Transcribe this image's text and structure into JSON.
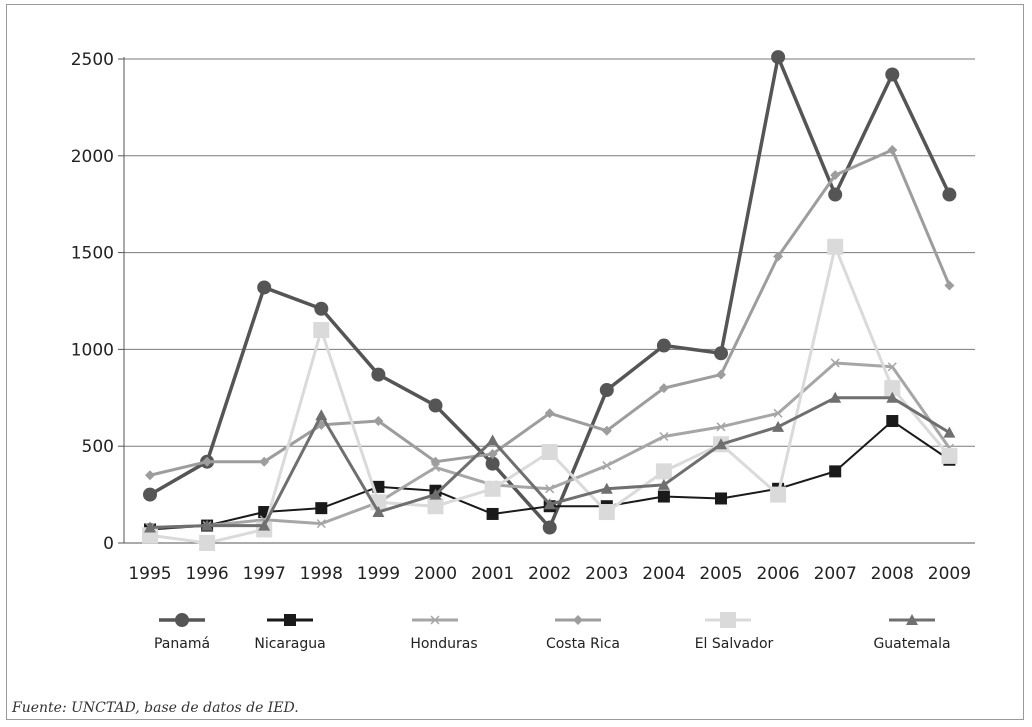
{
  "chart_data": {
    "type": "line",
    "title": "",
    "xlabel": "",
    "ylabel": "",
    "categories": [
      "1995",
      "1996",
      "1997",
      "1998",
      "1999",
      "2000",
      "2001",
      "2002",
      "2003",
      "2004",
      "2005",
      "2006",
      "2007",
      "2008",
      "2009"
    ],
    "ylim": [
      0,
      2500
    ],
    "yticks": [
      0,
      500,
      1000,
      1500,
      2000,
      2500
    ],
    "grid": "horizontal",
    "legend_position": "bottom",
    "series": [
      {
        "name": "Panamá",
        "color": "#555555",
        "marker": "circle",
        "values": [
          250,
          420,
          1320,
          1210,
          870,
          710,
          410,
          80,
          790,
          1020,
          980,
          2510,
          1800,
          2420,
          1800
        ]
      },
      {
        "name": "Nicaragua",
        "color": "#1a1a1a",
        "marker": "square",
        "values": [
          70,
          90,
          160,
          180,
          290,
          270,
          150,
          190,
          190,
          240,
          230,
          280,
          370,
          630,
          430
        ]
      },
      {
        "name": "Honduras",
        "color": "#a6a6a6",
        "marker": "x",
        "values": [
          80,
          90,
          120,
          100,
          210,
          390,
          300,
          280,
          400,
          550,
          600,
          670,
          930,
          910,
          490
        ]
      },
      {
        "name": "Costa Rica",
        "color": "#9d9d9d",
        "marker": "diamond",
        "values": [
          350,
          420,
          420,
          610,
          630,
          420,
          460,
          670,
          580,
          800,
          870,
          1480,
          1900,
          2030,
          1330
        ]
      },
      {
        "name": "El Salvador",
        "color": "#dadada",
        "marker": "square-large",
        "values": [
          40,
          0,
          70,
          1100,
          210,
          190,
          280,
          470,
          160,
          370,
          510,
          250,
          1530,
          800,
          450
        ]
      },
      {
        "name": "Guatemala",
        "color": "#6f6f6f",
        "marker": "triangle",
        "values": [
          80,
          90,
          90,
          660,
          160,
          250,
          530,
          200,
          280,
          300,
          510,
          600,
          750,
          750,
          570
        ]
      }
    ]
  },
  "source": "Fuente: UNCTAD, base de datos de IED."
}
